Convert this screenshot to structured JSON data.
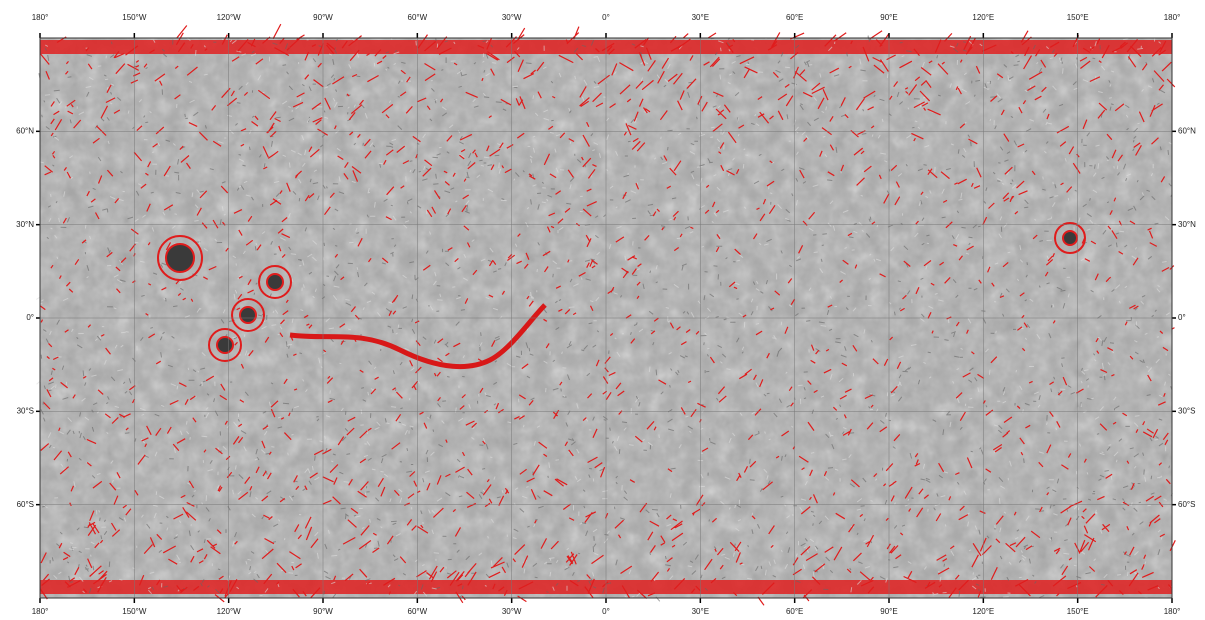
{
  "map": {
    "longitude_labels": [
      "180°",
      "150°W",
      "120°W",
      "90°W",
      "60°W",
      "30°W",
      "0°",
      "30°E",
      "60°E",
      "90°E",
      "120°E",
      "150°E",
      "180°"
    ],
    "latitude_labels": [
      "60°N",
      "30°N",
      "0°",
      "30°S",
      "60°S"
    ]
  }
}
